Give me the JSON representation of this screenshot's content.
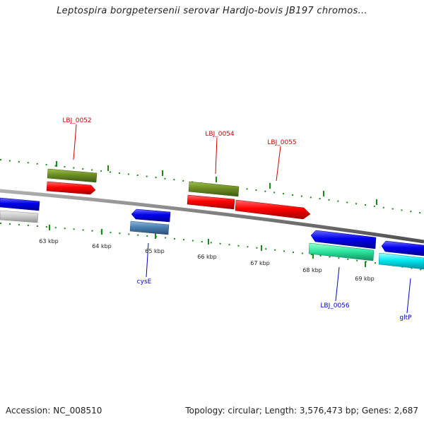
{
  "title": "Leptospira borgpetersenii serovar Hardjo-bovis JB197 chromos...",
  "accession": "Accession: NC_008510",
  "summary": "Topology: circular; Length: 3,576,473 bp; Genes: 2,687",
  "ticks": [
    "63 kbp",
    "64 kbp",
    "65 kbp",
    "66 kbp",
    "67 kbp",
    "68 kbp",
    "69 kbp"
  ],
  "genes": {
    "LBJ_0052": "LBJ_0052",
    "LBJ_0054": "LBJ_0054",
    "LBJ_0055": "LBJ_0055",
    "cysE": "cysE",
    "LBJ_0056": "LBJ_0056",
    "gltP": "gltP"
  },
  "colors": {
    "olive": "#6b8e23",
    "red": "#ff0000",
    "blue": "#0000ee",
    "grey": "#c8c8c8",
    "steel": "#4a7fb0",
    "spring_green": "#2ee8a0",
    "cyan": "#00e8f0",
    "tick_green": "#1a8a1a",
    "backbone": "#808080",
    "label_red": "#cc0000",
    "label_blue": "#0000cc"
  }
}
